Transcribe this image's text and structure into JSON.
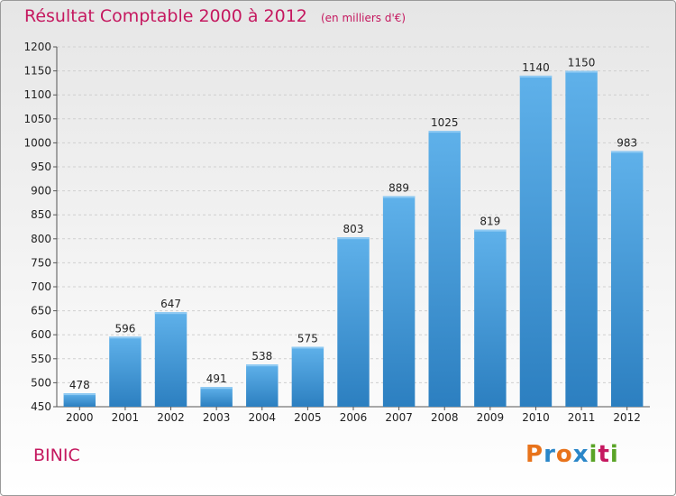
{
  "header": {
    "title": "Résultat Comptable 2000 à 2012",
    "subtitle": "(en milliers d'€)"
  },
  "location": "BINIC",
  "logo": {
    "letters": [
      "P",
      "r",
      "o",
      "x",
      "i",
      "t",
      "i"
    ],
    "colors": [
      "#e8731b",
      "#2a86c8",
      "#e8731b",
      "#2a86c8",
      "#5aa427",
      "#c5185f",
      "#5aa427"
    ]
  },
  "chart_data": {
    "type": "bar",
    "title": "Résultat Comptable 2000 à 2012",
    "xlabel": "",
    "ylabel": "",
    "ylim": [
      450,
      1200
    ],
    "yticks": [
      450,
      500,
      550,
      600,
      650,
      700,
      750,
      800,
      850,
      900,
      950,
      1000,
      1050,
      1100,
      1150,
      1200
    ],
    "categories": [
      "2000",
      "2001",
      "2002",
      "2003",
      "2004",
      "2005",
      "2006",
      "2007",
      "2008",
      "2009",
      "2010",
      "2011",
      "2012"
    ],
    "values": [
      478,
      596,
      647,
      491,
      538,
      575,
      803,
      889,
      1025,
      819,
      1140,
      1150,
      983
    ],
    "grid": true,
    "bar_color_top": "#5fb1ea",
    "bar_color_bottom": "#2c7fc0"
  }
}
